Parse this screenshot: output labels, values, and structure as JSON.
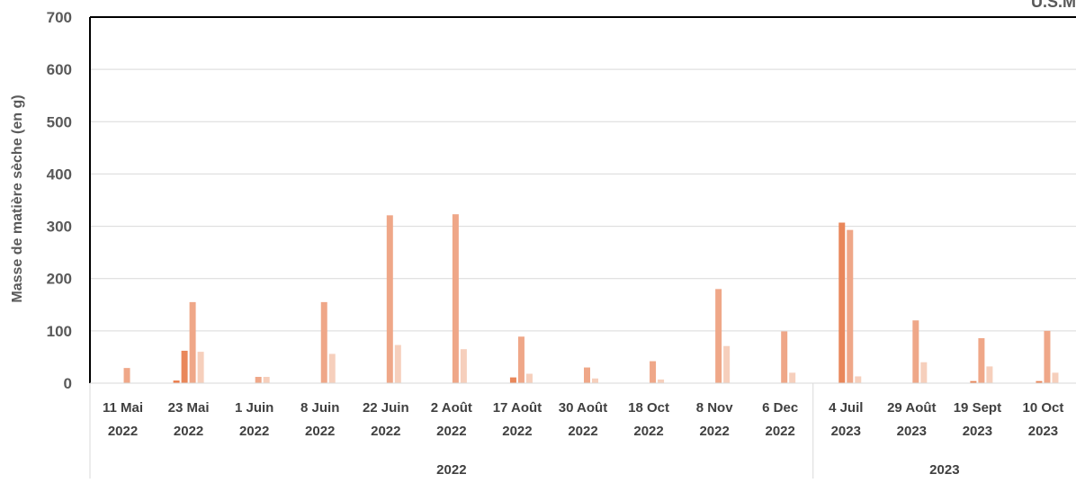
{
  "chart_data": {
    "type": "bar",
    "ylabel": "Masse de matière sèche (en g)",
    "ylim": [
      0,
      700
    ],
    "yticks": [
      0,
      100,
      200,
      300,
      400,
      500,
      600,
      700
    ],
    "grid": true,
    "legend": "none",
    "corner_text": "U.S.M",
    "categories": [
      [
        "11 Mai",
        "2022"
      ],
      [
        "23 Mai",
        "2022"
      ],
      [
        "1 Juin",
        "2022"
      ],
      [
        "8 Juin",
        "2022"
      ],
      [
        "22 Juin",
        "2022"
      ],
      [
        "2 Août",
        "2022"
      ],
      [
        "17 Août",
        "2022"
      ],
      [
        "30 Août",
        "2022"
      ],
      [
        "18 Oct",
        "2022"
      ],
      [
        "8 Nov",
        "2022"
      ],
      [
        "6 Dec",
        "2022"
      ],
      [
        "4 Juil",
        "2023"
      ],
      [
        "29 Août",
        "2023"
      ],
      [
        "19 Sept",
        "2023"
      ],
      [
        "10 Oct",
        "2023"
      ]
    ],
    "groups": [
      {
        "label": "2022",
        "count": 11
      },
      {
        "label": "2023",
        "count": 4
      }
    ],
    "series": [
      {
        "color": "#eb7c4a",
        "values": [
          0,
          5,
          0,
          0,
          0,
          0,
          0,
          0,
          0,
          0,
          0,
          0,
          0,
          0,
          0
        ]
      },
      {
        "color": "#e9875a",
        "values": [
          0,
          62,
          0,
          0,
          0,
          0,
          11,
          0,
          0,
          0,
          0,
          307,
          0,
          4,
          4
        ]
      },
      {
        "color": "#efa788",
        "values": [
          29,
          155,
          12,
          155,
          321,
          323,
          89,
          30,
          42,
          180,
          99,
          293,
          120,
          86,
          100
        ]
      },
      {
        "color": "#f6cfbc",
        "values": [
          0,
          60,
          12,
          56,
          73,
          65,
          18,
          9,
          7,
          71,
          20,
          13,
          40,
          32,
          20
        ]
      }
    ]
  }
}
